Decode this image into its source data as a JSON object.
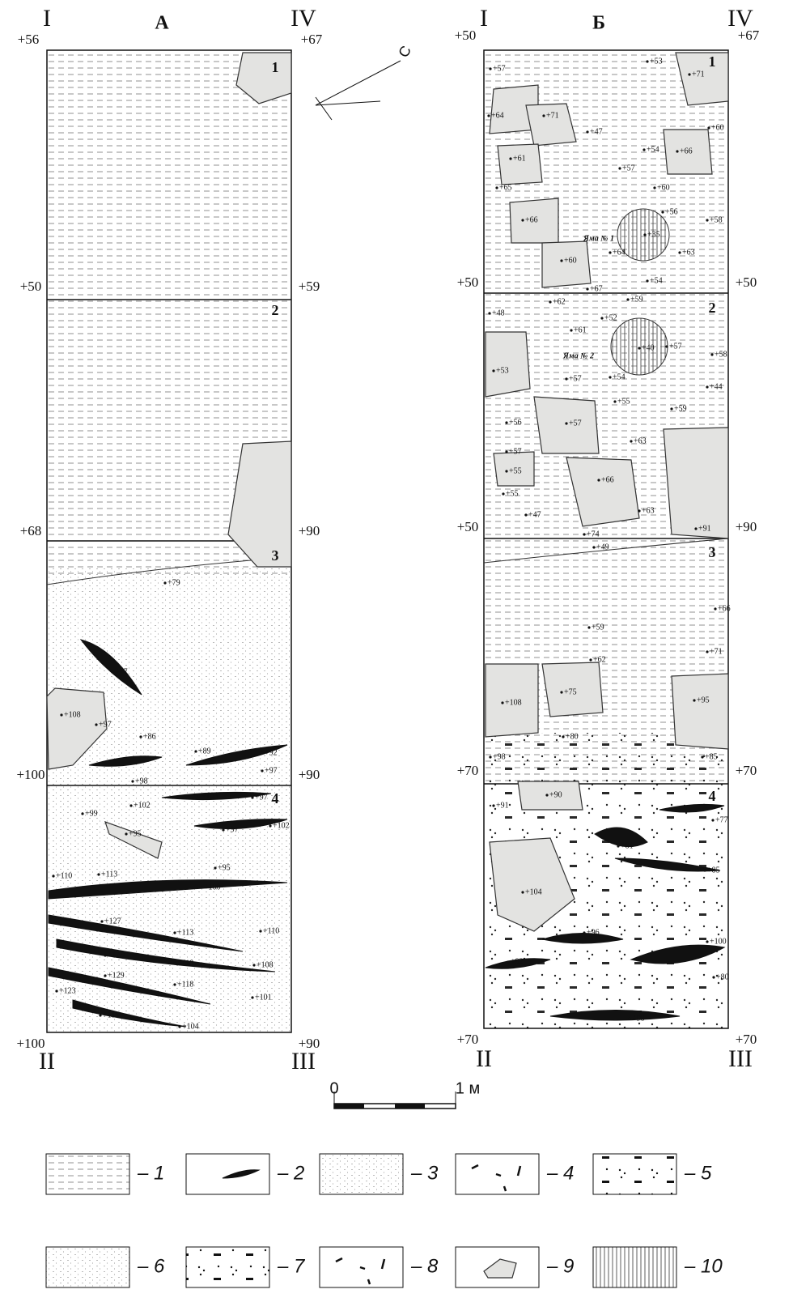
{
  "panel_a": {
    "title": "А",
    "corner_tl": "I",
    "corner_tr": "IV",
    "corner_bl": "II",
    "corner_br": "III",
    "top_left": "+56",
    "top_right": "+67",
    "elevations_left": [
      "+50",
      "+68",
      "+100",
      "+100"
    ],
    "elevations_right": [
      "+59",
      "+90",
      "+90",
      "+90"
    ],
    "layers": [
      "1",
      "2",
      "3",
      "4"
    ],
    "points": [
      "+79",
      "+77",
      "+108",
      "+97",
      "+86",
      "+89",
      "+92",
      "+97",
      "+98",
      "+103",
      "+97",
      "+102",
      "+99",
      "+95",
      "+97",
      "+102",
      "+110",
      "+113",
      "+95",
      "+100",
      "+127",
      "+110",
      "+113",
      "+129",
      "+118",
      "+108",
      "+129",
      "+118",
      "+123",
      "+101",
      "+115",
      "+104"
    ]
  },
  "panel_b": {
    "title": "Б",
    "corner_tl": "I",
    "corner_tr": "IV",
    "corner_bl": "II",
    "corner_br": "III",
    "top_left": "+50",
    "top_right": "+67",
    "elevations_left": [
      "+50",
      "+50",
      "+70",
      "+70"
    ],
    "elevations_right": [
      "+50",
      "+90",
      "+70",
      "+70"
    ],
    "layers": [
      "1",
      "2",
      "3",
      "4"
    ],
    "pits": [
      "Яма № 1",
      "Яма № 2"
    ],
    "points": [
      "+57",
      "+53",
      "+71",
      "+64",
      "+71",
      "+60",
      "+47",
      "+54",
      "+66",
      "+61",
      "+57",
      "+65",
      "+60",
      "+66",
      "+56",
      "+58",
      "+35",
      "+64",
      "+63",
      "+60",
      "+54",
      "+67",
      "+62",
      "+59",
      "+48",
      "+61",
      "+52",
      "+40",
      "+57",
      "+58",
      "+53",
      "+57",
      "+54",
      "+44",
      "+55",
      "+59",
      "+57",
      "+56",
      "+63",
      "+57",
      "+55",
      "+66",
      "+55",
      "+47",
      "+63",
      "+91",
      "+74",
      "+49",
      "+66",
      "+59",
      "+71",
      "+62",
      "+75",
      "+108",
      "+95",
      "+80",
      "+98",
      "+85",
      "+90",
      "+91",
      "+77",
      "+81",
      "+85",
      "+104",
      "+96",
      "+100",
      "+92",
      "+80",
      "+98"
    ]
  },
  "scale": {
    "start": "0",
    "end": "1 м"
  },
  "legend": [
    "– 1",
    "– 2",
    "– 3",
    "– 4",
    "– 5",
    "– 6",
    "– 7",
    "– 8",
    "– 9",
    "– 10"
  ]
}
